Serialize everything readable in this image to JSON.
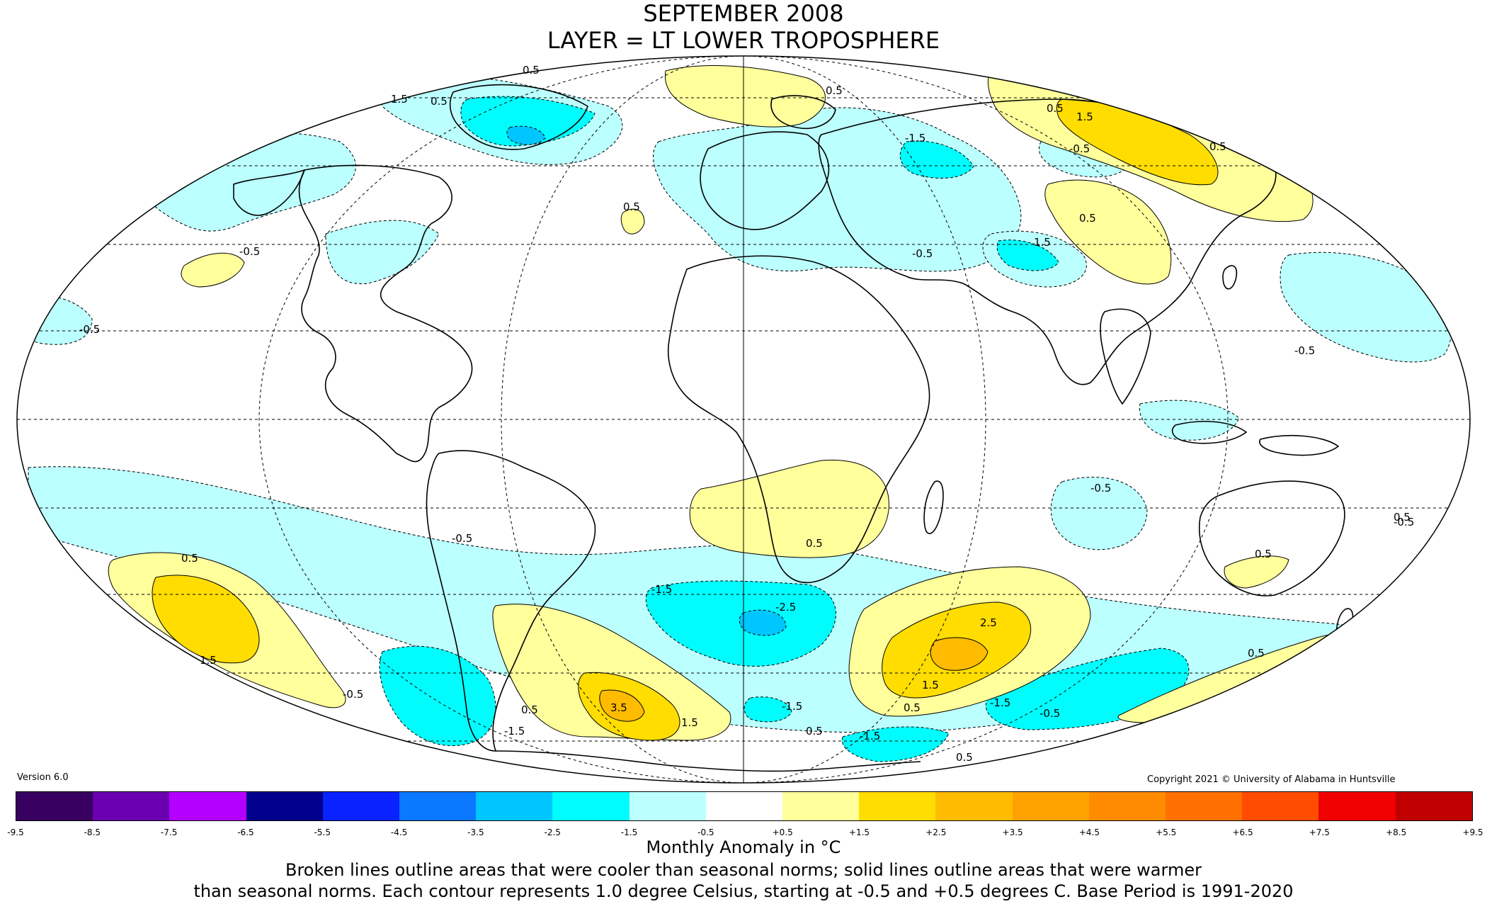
{
  "title": {
    "line1": "SEPTEMBER 2008",
    "line2": "LAYER = LT LOWER TROPOSPHERE"
  },
  "version": "Version 6.0",
  "copyright": "Copyright 2021 © University of Alabama in Huntsville",
  "legend": {
    "colors": [
      "#380060",
      "#6a00b0",
      "#b400ff",
      "#00008c",
      "#0a22ff",
      "#0a78ff",
      "#00c6ff",
      "#00fcfc",
      "#bcffff",
      "#ffffff",
      "#ffff9c",
      "#ffdd00",
      "#ffbb00",
      "#ffa200",
      "#ff8c00",
      "#ff7000",
      "#ff4c00",
      "#f00000",
      "#c00000"
    ],
    "ticks": [
      "-9.5",
      "-8.5",
      "-7.5",
      "-6.5",
      "-5.5",
      "-4.5",
      "-3.5",
      "-2.5",
      "-1.5",
      "-0.5",
      "+0.5",
      "+1.5",
      "+2.5",
      "+3.5",
      "+4.5",
      "+5.5",
      "+6.5",
      "+7.5",
      "+8.5",
      "+9.5"
    ],
    "units": "Monthly Anomaly in °C"
  },
  "note": {
    "line1": "Broken lines outline areas that were cooler than seasonal norms; solid lines outline areas that were warmer",
    "line2": "than seasonal norms. Each contour represents 1.0 degree Celsius, starting at -0.5 and +0.5 degrees C. Base Period is 1991-2020"
  },
  "contour_labels": [
    {
      "id": "c1",
      "text": "0.5"
    },
    {
      "id": "c2",
      "text": "1.5"
    },
    {
      "id": "c3",
      "text": "0.5"
    },
    {
      "id": "c4",
      "text": "0.5"
    },
    {
      "id": "c5",
      "text": "1.5"
    },
    {
      "id": "c6",
      "text": "0.5"
    },
    {
      "id": "c7",
      "text": "-1.5"
    },
    {
      "id": "c8",
      "text": "-0.5"
    },
    {
      "id": "c9",
      "text": "0.5"
    },
    {
      "id": "c10",
      "text": "0.5"
    },
    {
      "id": "c11",
      "text": "0.5"
    },
    {
      "id": "c12",
      "text": "-0.5"
    },
    {
      "id": "c13",
      "text": "1.5"
    },
    {
      "id": "c14",
      "text": "-0.5"
    },
    {
      "id": "c15",
      "text": "-0.5"
    },
    {
      "id": "c16",
      "text": "-0.5"
    },
    {
      "id": "c17",
      "text": "-0.5"
    },
    {
      "id": "c18",
      "text": "0.5"
    },
    {
      "id": "c19",
      "text": "1.5"
    },
    {
      "id": "c20",
      "text": "0.5"
    },
    {
      "id": "c21",
      "text": "-0.5"
    },
    {
      "id": "c22",
      "text": "-0.5"
    },
    {
      "id": "c23",
      "text": "0.5"
    },
    {
      "id": "c24",
      "text": "0.5"
    },
    {
      "id": "c25",
      "text": "-1.5"
    },
    {
      "id": "c26",
      "text": "-2.5"
    },
    {
      "id": "c27",
      "text": "2.5"
    },
    {
      "id": "c28",
      "text": "3.5"
    },
    {
      "id": "c29",
      "text": "1.5"
    },
    {
      "id": "c30",
      "text": "0.5"
    },
    {
      "id": "c31",
      "text": "-1.5"
    },
    {
      "id": "c32",
      "text": "1.5"
    },
    {
      "id": "c33",
      "text": "0.5"
    },
    {
      "id": "c34",
      "text": "-1.5"
    },
    {
      "id": "c35",
      "text": "-0.5"
    },
    {
      "id": "c36",
      "text": "0.5"
    },
    {
      "id": "c37",
      "text": "-1.5"
    },
    {
      "id": "c38",
      "text": "-1.5"
    },
    {
      "id": "c39",
      "text": "0.5"
    },
    {
      "id": "c40",
      "text": "0.5"
    },
    {
      "id": "c41",
      "text": "-0.5"
    }
  ]
}
